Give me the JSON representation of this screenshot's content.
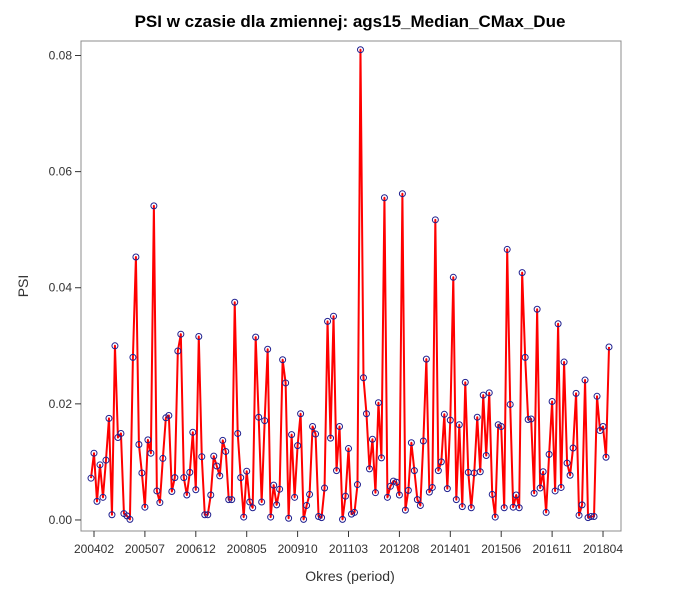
{
  "chart_data": {
    "type": "line",
    "title": "PSI w czasie dla zmiennej: ags15_Median_CMax_Due",
    "xlabel": "Okres (period)",
    "ylabel": "PSI",
    "x_tick_labels": [
      "200402",
      "200507",
      "200612",
      "200805",
      "200910",
      "201103",
      "201208",
      "201401",
      "201506",
      "201611",
      "201804"
    ],
    "x_start_period": "200401",
    "x_end_period": "201807",
    "y_ticks": [
      "0.00",
      "0.02",
      "0.04",
      "0.06",
      "0.08"
    ],
    "ylim": [
      -0.0019,
      0.0825
    ],
    "grid": false,
    "legend": "none",
    "line_color": "#ff0000",
    "marker_color": "#1f1f8f",
    "series": [
      {
        "values": [
          0.0072,
          0.0115,
          0.0032,
          0.0095,
          0.0039,
          0.0103,
          0.0175,
          0.0009,
          0.03,
          0.0142,
          0.0149,
          0.0011,
          0.0007,
          0.0001,
          0.028,
          0.0453,
          0.013,
          0.0081,
          0.0022,
          0.0138,
          0.0115,
          0.0541,
          0.005,
          0.003,
          0.0106,
          0.0176,
          0.018,
          0.0049,
          0.0073,
          0.0291,
          0.032,
          0.0073,
          0.0043,
          0.0082,
          0.0151,
          0.0052,
          0.0316,
          0.0109,
          0.0009,
          0.0009,
          0.0043,
          0.011,
          0.0093,
          0.0076,
          0.0137,
          0.0118,
          0.0035,
          0.0035,
          0.0375,
          0.0149,
          0.0073,
          0.0005,
          0.0084,
          0.0031,
          0.0021,
          0.0315,
          0.0177,
          0.0031,
          0.0171,
          0.0294,
          0.0005,
          0.006,
          0.0026,
          0.0053,
          0.0276,
          0.0236,
          0.0003,
          0.0147,
          0.0039,
          0.0128,
          0.0183,
          0.0001,
          0.0025,
          0.0044,
          0.0161,
          0.0148,
          0.0006,
          0.0004,
          0.0055,
          0.0342,
          0.0141,
          0.0351,
          0.0085,
          0.0161,
          0.0001,
          0.0041,
          0.0123,
          0.001,
          0.0013,
          0.0061,
          0.081,
          0.0245,
          0.0183,
          0.0088,
          0.0139,
          0.0047,
          0.0202,
          0.0107,
          0.0555,
          0.0039,
          0.0058,
          0.0067,
          0.0065,
          0.0043,
          0.0562,
          0.0017,
          0.0051,
          0.0133,
          0.0085,
          0.0035,
          0.0025,
          0.0136,
          0.0277,
          0.0048,
          0.0056,
          0.0517,
          0.0085,
          0.01,
          0.0182,
          0.0054,
          0.0172,
          0.0418,
          0.0035,
          0.0164,
          0.0023,
          0.0237,
          0.0082,
          0.0021,
          0.0081,
          0.0177,
          0.0083,
          0.0215,
          0.0111,
          0.0219,
          0.0044,
          0.0005,
          0.0164,
          0.0161,
          0.0021,
          0.0466,
          0.0199,
          0.0022,
          0.0043,
          0.0021,
          0.0426,
          0.028,
          0.0173,
          0.0174,
          0.0046,
          0.0363,
          0.0055,
          0.0083,
          0.0013,
          0.0113,
          0.0204,
          0.005,
          0.0338,
          0.0056,
          0.0272,
          0.0098,
          0.0077,
          0.0124,
          0.0218,
          0.0008,
          0.0026,
          0.0241,
          0.0004,
          0.0006,
          0.0006,
          0.0213,
          0.0154,
          0.0161,
          0.0108,
          0.0298
        ]
      }
    ]
  }
}
